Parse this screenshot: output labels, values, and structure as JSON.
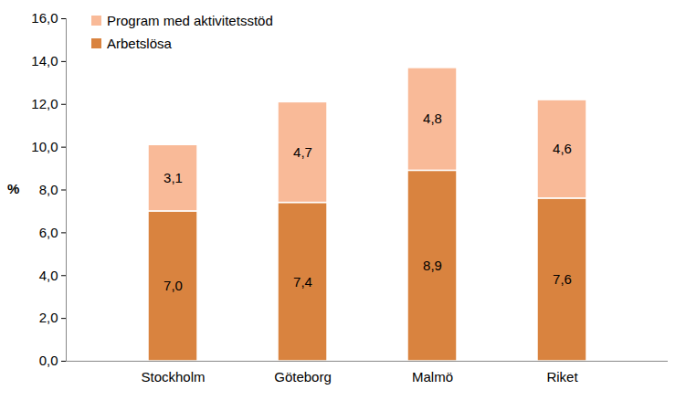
{
  "chart_data": {
    "type": "bar",
    "stacked": true,
    "data_labels": true,
    "grid": false,
    "legend": "top-left",
    "y_label": "%",
    "categories": [
      "Stockholm",
      "Göteborg",
      "Malmö",
      "Riket"
    ],
    "series": [
      {
        "name": "Arbetslösa",
        "color": "#d9833f",
        "values": [
          7.0,
          7.4,
          8.9,
          7.6
        ],
        "value_labels": [
          "7,0",
          "7,4",
          "8,9",
          "7,6"
        ]
      },
      {
        "name": "Program med aktivitetsstöd",
        "color": "#f9ba98",
        "values": [
          3.1,
          4.7,
          4.8,
          4.6
        ],
        "value_labels": [
          "3,1",
          "4,7",
          "4,8",
          "4,6"
        ]
      }
    ],
    "ylim": [
      0,
      16
    ],
    "yticks": [
      {
        "value": 0,
        "label": "0,0"
      },
      {
        "value": 2,
        "label": "2,0"
      },
      {
        "value": 4,
        "label": "4,0"
      },
      {
        "value": 6,
        "label": "6,0"
      },
      {
        "value": 8,
        "label": "8,0"
      },
      {
        "value": 10,
        "label": "10,0"
      },
      {
        "value": 12,
        "label": "12,0"
      },
      {
        "value": 14,
        "label": "14,0"
      },
      {
        "value": 16,
        "label": "16,0"
      }
    ]
  }
}
